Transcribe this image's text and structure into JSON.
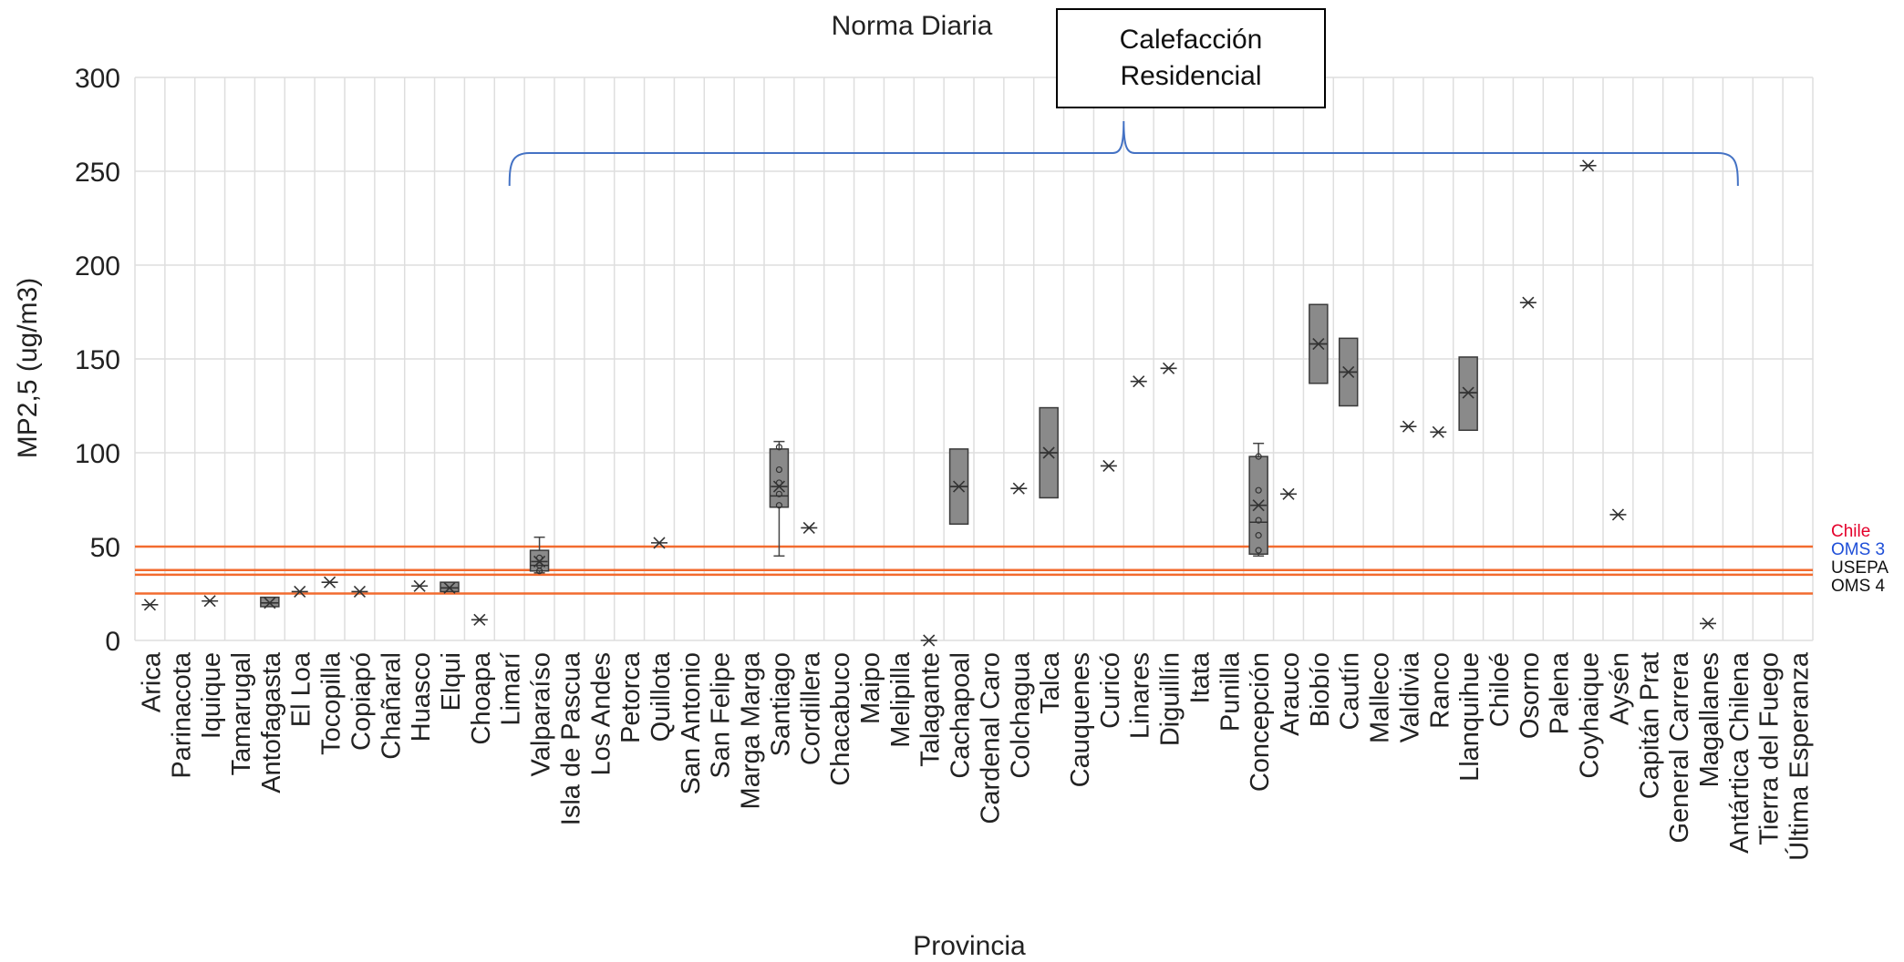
{
  "chart_data": {
    "type": "box",
    "title": "Norma Diaria",
    "xlabel": "Provincia",
    "ylabel": "MP2,5 (ug/m3)",
    "ylim": [
      0,
      300
    ],
    "yticks": [
      0,
      50,
      100,
      150,
      200,
      250,
      300
    ],
    "grid": true,
    "categories": [
      "Arica",
      "Parinacota",
      "Iquique",
      "Tamarugal",
      "Antofagasta",
      "El Loa",
      "Tocopilla",
      "Copiapó",
      "Chañaral",
      "Huasco",
      "Elqui",
      "Choapa",
      "Limarí",
      "Valparaíso",
      "Isla de Pascua",
      "Los Andes",
      "Petorca",
      "Quillota",
      "San Antonio",
      "San Felipe",
      "Marga Marga",
      "Santiago",
      "Cordillera",
      "Chacabuco",
      "Maipo",
      "Melipilla",
      "Talagante",
      "Cachapoal",
      "Cardenal Caro",
      "Colchagua",
      "Talca",
      "Cauquenes",
      "Curicó",
      "Linares",
      "Diguillín",
      "Itata",
      "Punilla",
      "Concepción",
      "Arauco",
      "Biobío",
      "Cautín",
      "Malleco",
      "Valdivia",
      "Ranco",
      "Llanquihue",
      "Chiloé",
      "Osorno",
      "Palena",
      "Coyhaique",
      "Aysén",
      "Capitán Prat",
      "General Carrera",
      "Magallanes",
      "Antártica Chilena",
      "Tierra del Fuego",
      "Última Esperanza"
    ],
    "boxes": [
      {
        "cat": "Arica",
        "mean": 19
      },
      {
        "cat": "Iquique",
        "mean": 21
      },
      {
        "cat": "Antofagasta",
        "q1": 18,
        "q3": 23,
        "median": 20,
        "mean": 20
      },
      {
        "cat": "El Loa",
        "mean": 26
      },
      {
        "cat": "Tocopilla",
        "mean": 31
      },
      {
        "cat": "Copiapó",
        "mean": 26
      },
      {
        "cat": "Huasco",
        "mean": 29
      },
      {
        "cat": "Elqui",
        "q1": 26,
        "q3": 31,
        "median": 28,
        "mean": 28
      },
      {
        "cat": "Choapa",
        "mean": 11
      },
      {
        "cat": "Valparaíso",
        "min": 36,
        "max": 55,
        "q1": 37,
        "q3": 48,
        "median": 40,
        "mean": 42,
        "points": [
          37,
          40,
          44
        ]
      },
      {
        "cat": "Quillota",
        "mean": 52
      },
      {
        "cat": "Santiago",
        "min": 45,
        "max": 106,
        "q1": 71,
        "q3": 102,
        "median": 77,
        "mean": 82,
        "points": [
          72,
          78,
          84,
          91,
          103
        ]
      },
      {
        "cat": "Cordillera",
        "mean": 60
      },
      {
        "cat": "Talagante",
        "mean": 0
      },
      {
        "cat": "Cachapoal",
        "q1": 62,
        "q3": 102,
        "median": 82,
        "mean": 82
      },
      {
        "cat": "Colchagua",
        "mean": 81
      },
      {
        "cat": "Talca",
        "q1": 76,
        "q3": 124,
        "median": 100,
        "mean": 100
      },
      {
        "cat": "Curicó",
        "mean": 93
      },
      {
        "cat": "Linares",
        "mean": 138
      },
      {
        "cat": "Diguillín",
        "mean": 145
      },
      {
        "cat": "Concepción",
        "min": 45,
        "max": 105,
        "q1": 46,
        "q3": 98,
        "median": 63,
        "mean": 72,
        "points": [
          48,
          56,
          64,
          80,
          98
        ]
      },
      {
        "cat": "Arauco",
        "mean": 78
      },
      {
        "cat": "Biobío",
        "q1": 137,
        "q3": 179,
        "median": 158,
        "mean": 158
      },
      {
        "cat": "Cautín",
        "q1": 125,
        "q3": 161,
        "median": 143,
        "mean": 143
      },
      {
        "cat": "Valdivia",
        "mean": 114
      },
      {
        "cat": "Ranco",
        "mean": 111
      },
      {
        "cat": "Llanquihue",
        "q1": 112,
        "q3": 151,
        "median": 132,
        "mean": 132
      },
      {
        "cat": "Osorno",
        "mean": 180
      },
      {
        "cat": "Coyhaique",
        "mean": 253
      },
      {
        "cat": "Aysén",
        "mean": 67
      },
      {
        "cat": "Magallanes",
        "mean": 9
      }
    ],
    "reference_lines": [
      {
        "name": "Chile",
        "value": 50,
        "color": "#e4002b"
      },
      {
        "name": "OMS 3",
        "value": 37.5,
        "color": "#1f4fd8"
      },
      {
        "name": "USEPA",
        "value": 35,
        "color": "#111111"
      },
      {
        "name": "OMS 4",
        "value": 25,
        "color": "#111111"
      }
    ],
    "line_color": "#f26b2f",
    "box_color": "#8a8a8a",
    "bracket_color": "#4472c4",
    "annotation": {
      "text": "Calefacción\nResidencial",
      "range": [
        "Limarí",
        "Antártica Chilena"
      ]
    }
  }
}
